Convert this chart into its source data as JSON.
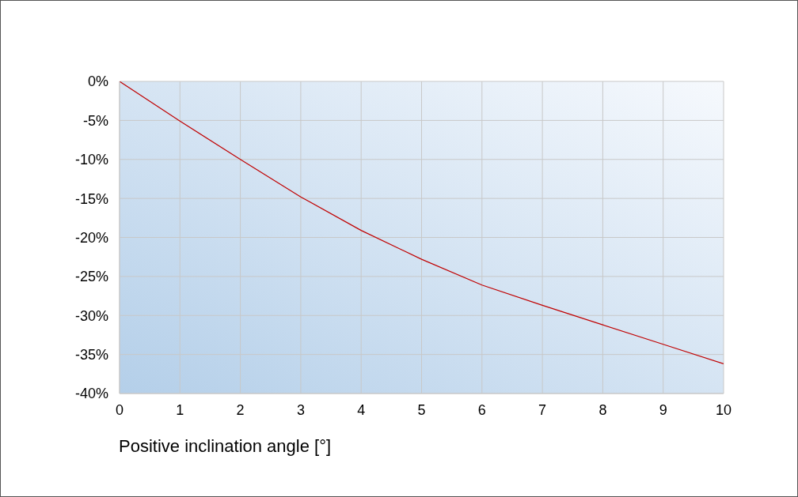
{
  "chart_data": {
    "type": "line",
    "xlabel": "Positive inclination angle [°]",
    "x": [
      0,
      1,
      2,
      3,
      4,
      5,
      6,
      7,
      8,
      9,
      10
    ],
    "series": [
      {
        "color": "#c00000",
        "values": [
          0,
          -5.1,
          -10.0,
          -14.8,
          -19.1,
          -22.8,
          -26.1,
          -28.7,
          -31.2,
          -33.7,
          -36.2
        ]
      }
    ],
    "xlim": [
      0,
      10
    ],
    "xticks": [
      0,
      1,
      2,
      3,
      4,
      5,
      6,
      7,
      8,
      9,
      10
    ],
    "ylim": [
      -40,
      0
    ],
    "yticks": [
      {
        "value": 0,
        "label": "0%"
      },
      {
        "value": -5,
        "label": "-5%"
      },
      {
        "value": -10,
        "label": "-10%"
      },
      {
        "value": -15,
        "label": "-15%"
      },
      {
        "value": -20,
        "label": "-20%"
      },
      {
        "value": -25,
        "label": "-25%"
      },
      {
        "value": -30,
        "label": "-30%"
      },
      {
        "value": -35,
        "label": "-35%"
      },
      {
        "value": -40,
        "label": "-40%"
      }
    ],
    "grid": true,
    "marker": "none",
    "line_style": "solid"
  }
}
